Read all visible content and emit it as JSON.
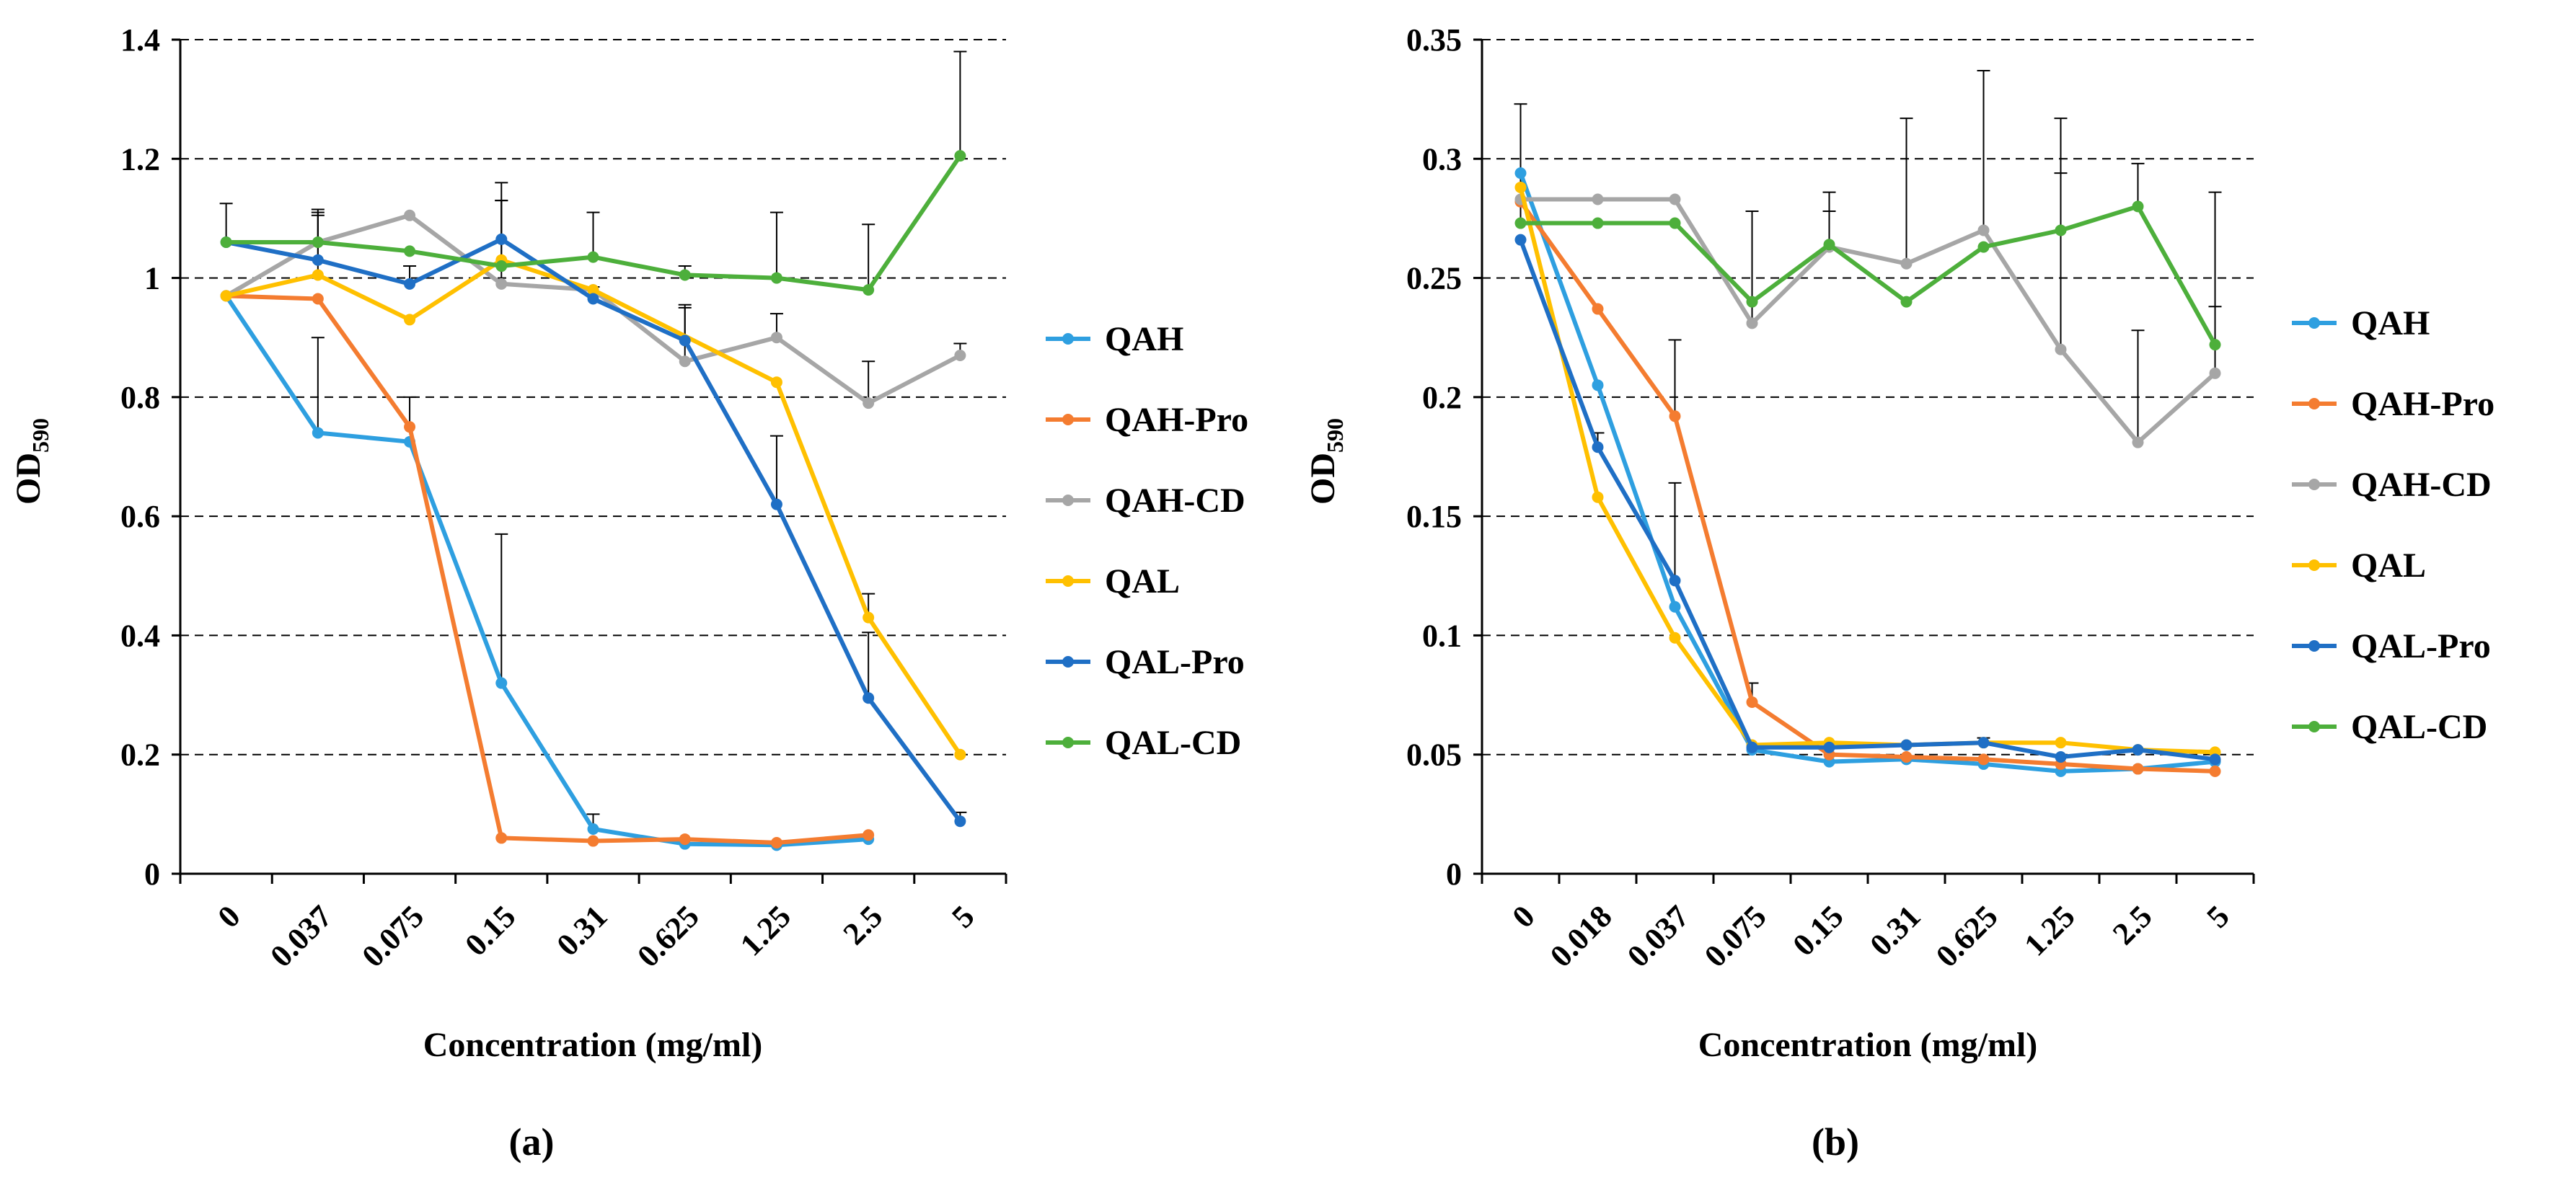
{
  "chart_data": [
    {
      "type": "line",
      "panel_label": "(a)",
      "xlabel": "Concentration (mg/ml)",
      "ylabel": "OD",
      "ylabel_subscript": "590",
      "categories": [
        "0",
        "0.037",
        "0.075",
        "0.15",
        "0.31",
        "0.625",
        "1.25",
        "2.5",
        "5"
      ],
      "ylim": [
        0,
        1.4
      ],
      "yticks": [
        0,
        0.2,
        0.4,
        0.6,
        0.8,
        1,
        1.2,
        1.4
      ],
      "ytick_labels": [
        "0",
        "0.2",
        "0.4",
        "0.6",
        "0.8",
        "1",
        "1.2",
        "1.4"
      ],
      "grid": "horizontal dashed",
      "legend_position": "right",
      "series": [
        {
          "name": "QAH",
          "color": "#2E9FE0",
          "values": [
            0.97,
            0.74,
            0.725,
            0.32,
            0.075,
            0.05,
            0.048,
            0.058,
            null
          ],
          "errors": [
            0,
            0.16,
            0,
            0.25,
            0.025,
            0,
            0,
            0,
            null
          ]
        },
        {
          "name": "QAH-Pro",
          "color": "#F47C30",
          "values": [
            0.97,
            0.965,
            0.75,
            0.06,
            0.055,
            0.058,
            0.052,
            0.065,
            null
          ],
          "errors": [
            0,
            0,
            0.05,
            0,
            0,
            0,
            0,
            0,
            null
          ]
        },
        {
          "name": "QAH-CD",
          "color": "#A6A6A6",
          "values": [
            0.97,
            1.06,
            1.105,
            0.99,
            0.98,
            0.86,
            0.9,
            0.79,
            0.87
          ],
          "errors": [
            0,
            0.05,
            0,
            0.17,
            0,
            0.09,
            0.04,
            0.07,
            0.02
          ]
        },
        {
          "name": "QAL",
          "color": "#FFC000",
          "values": [
            0.97,
            1.005,
            0.93,
            1.03,
            0.98,
            null,
            0.825,
            0.43,
            0.2
          ],
          "errors": [
            0,
            0.1,
            0,
            0.1,
            0,
            null,
            0,
            0.04,
            0
          ]
        },
        {
          "name": "QAL-Pro",
          "color": "#1F6FC5",
          "values": [
            1.06,
            1.03,
            0.99,
            1.065,
            0.965,
            0.895,
            0.62,
            0.295,
            0.088
          ],
          "errors": [
            0.065,
            0.085,
            0.03,
            0.065,
            0.02,
            0.06,
            0.115,
            0.11,
            0.015
          ]
        },
        {
          "name": "QAL-CD",
          "color": "#4DAF3B",
          "values": [
            1.06,
            1.06,
            1.045,
            1.02,
            1.035,
            1.005,
            1.0,
            0.98,
            1.205
          ],
          "errors": [
            0,
            0,
            0,
            0,
            0.075,
            0.015,
            0.11,
            0.11,
            0.175
          ]
        }
      ]
    },
    {
      "type": "line",
      "panel_label": "(b)",
      "xlabel": "Concentration (mg/ml)",
      "ylabel": "OD",
      "ylabel_subscript": "590",
      "categories": [
        "0",
        "0.018",
        "0.037",
        "0.075",
        "0.15",
        "0.31",
        "0.625",
        "1.25",
        "2.5",
        "5"
      ],
      "ylim": [
        0,
        0.35
      ],
      "yticks": [
        0,
        0.05,
        0.1,
        0.15,
        0.2,
        0.25,
        0.3,
        0.35
      ],
      "ytick_labels": [
        "0",
        "0.05",
        "0.1",
        "0.15",
        "0.2",
        "0.25",
        "0.3",
        "0.35"
      ],
      "grid": "horizontal dashed",
      "legend_position": "right",
      "series": [
        {
          "name": "QAH",
          "color": "#2E9FE0",
          "values": [
            0.294,
            0.205,
            0.112,
            0.052,
            0.047,
            0.048,
            0.046,
            0.043,
            0.044,
            0.047
          ],
          "errors": [
            0,
            0,
            0,
            0,
            0,
            0,
            0,
            0,
            0,
            0
          ]
        },
        {
          "name": "QAH-Pro",
          "color": "#F47C30",
          "values": [
            0.282,
            0.237,
            0.192,
            0.072,
            0.05,
            0.049,
            0.048,
            0.046,
            0.044,
            0.043
          ],
          "errors": [
            0,
            0,
            0.032,
            0.008,
            0,
            0,
            0,
            0,
            0,
            0
          ]
        },
        {
          "name": "QAH-CD",
          "color": "#A6A6A6",
          "values": [
            0.283,
            0.283,
            0.283,
            0.231,
            0.263,
            0.256,
            0.27,
            0.22,
            0.181,
            0.21
          ],
          "errors": [
            0,
            0,
            0,
            0.047,
            0.015,
            0.061,
            0.067,
            0.074,
            0.047,
            0.028
          ]
        },
        {
          "name": "QAL",
          "color": "#FFC000",
          "values": [
            0.288,
            0.158,
            0.099,
            0.054,
            0.055,
            0.054,
            0.055,
            0.055,
            0.052,
            0.051
          ],
          "errors": [
            0,
            0,
            0,
            0,
            0,
            0,
            0,
            0,
            0,
            0
          ]
        },
        {
          "name": "QAL-Pro",
          "color": "#1F6FC5",
          "values": [
            0.266,
            0.179,
            0.123,
            0.053,
            0.053,
            0.054,
            0.055,
            0.049,
            0.052,
            0.048
          ],
          "errors": [
            0,
            0.006,
            0.041,
            0,
            0,
            0,
            0.002,
            0,
            0,
            0
          ]
        },
        {
          "name": "QAL-CD",
          "color": "#4DAF3B",
          "values": [
            0.273,
            0.273,
            0.273,
            0.24,
            0.264,
            0.24,
            0.263,
            0.27,
            0.28,
            0.222
          ],
          "errors": [
            0.05,
            0,
            0,
            0,
            0.022,
            0,
            0,
            0.047,
            0.018,
            0.064
          ]
        }
      ]
    }
  ]
}
